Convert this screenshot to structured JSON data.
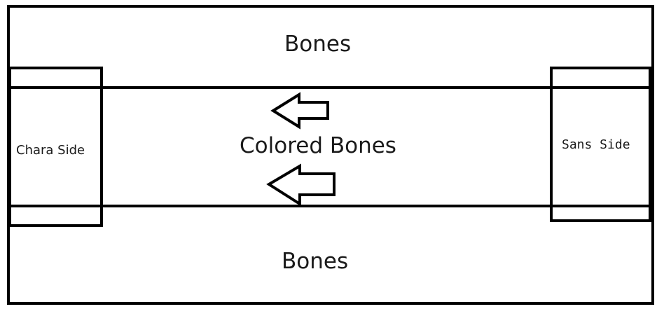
{
  "labels": {
    "top_bones": "Bones",
    "middle": "Colored Bones",
    "bottom_bones": "Bones",
    "left_side": "Chara Side",
    "right_side": "Sans Side"
  },
  "arrows": [
    {
      "direction": "left"
    },
    {
      "direction": "left"
    }
  ]
}
